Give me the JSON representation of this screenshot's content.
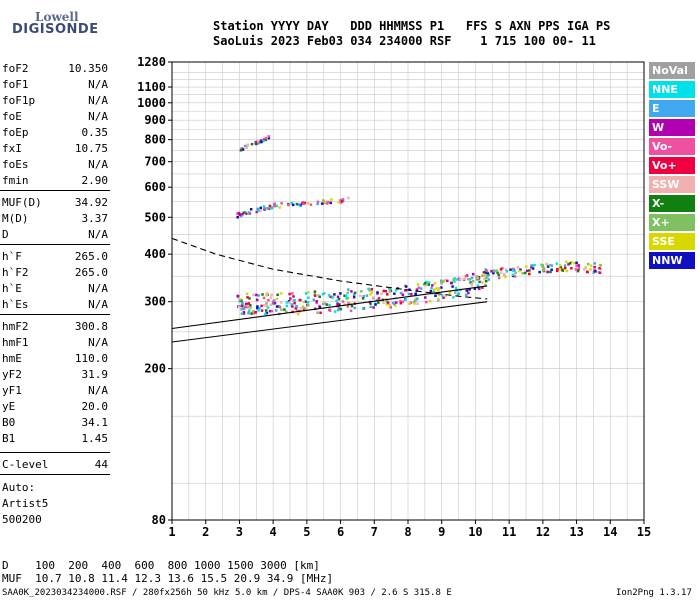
{
  "logo": {
    "top": "Lowell",
    "main": "DIGISONDE"
  },
  "header": {
    "line1": "Station YYYY DAY   DDD HHMMSS P1   FFS S AXN PPS IGA PS",
    "line2": "SaoLuis 2023 Feb03 034 234000 RSF    1 715 100 00- 11"
  },
  "params": [
    {
      "label": "foF2",
      "value": "10.350"
    },
    {
      "label": "foF1",
      "value": "N/A"
    },
    {
      "label": "foF1p",
      "value": "N/A"
    },
    {
      "label": "foE",
      "value": "N/A"
    },
    {
      "label": "foEp",
      "value": "0.35"
    },
    {
      "label": "fxI",
      "value": "10.75"
    },
    {
      "label": "foEs",
      "value": "N/A"
    },
    {
      "label": "fmin",
      "value": "2.90"
    },
    {
      "label": "MUF(D)",
      "value": "34.92"
    },
    {
      "label": "M(D)",
      "value": "3.37"
    },
    {
      "label": "D",
      "value": "N/A"
    },
    {
      "label": "h`F",
      "value": "265.0"
    },
    {
      "label": "h`F2",
      "value": "265.0"
    },
    {
      "label": "h`E",
      "value": "N/A"
    },
    {
      "label": "h`Es",
      "value": "N/A"
    },
    {
      "label": "hmF2",
      "value": "300.8"
    },
    {
      "label": "hmF1",
      "value": "N/A"
    },
    {
      "label": "hmE",
      "value": "110.0"
    },
    {
      "label": "yF2",
      "value": "31.9"
    },
    {
      "label": "yF1",
      "value": "N/A"
    },
    {
      "label": "yE",
      "value": "20.0"
    },
    {
      "label": "B0",
      "value": "34.1"
    },
    {
      "label": "B1",
      "value": "1.45"
    },
    {
      "label": "C-level",
      "value": "44"
    }
  ],
  "auto": {
    "line1": "Auto:",
    "line2": "Artist5",
    "line3": "500200"
  },
  "legend": [
    {
      "label": "NoVal",
      "color": "#a0a0a0"
    },
    {
      "label": "NNE",
      "color": "#00e0e8"
    },
    {
      "label": "E",
      "color": "#40a8f0"
    },
    {
      "label": "W",
      "color": "#b000b0"
    },
    {
      "label": "Vo-",
      "color": "#f050a0"
    },
    {
      "label": "Vo+",
      "color": "#f00040"
    },
    {
      "label": "SSW",
      "color": "#f0b0b0"
    },
    {
      "label": "X-",
      "color": "#108010"
    },
    {
      "label": "X+",
      "color": "#80c060"
    },
    {
      "label": "SSE",
      "color": "#d8d800"
    },
    {
      "label": "NNW",
      "color": "#1010c0"
    }
  ],
  "footer": {
    "d_line": "D    100  200  400  600  800 1000 1500 3000 [km]",
    "muf_line": "MUF  10.7 10.8 11.4 12.3 13.6 15.5 20.9 34.9 [MHz]",
    "info": "SAA0K_2023034234000.RSF / 280fx256h 50 kHz 5.0 km / DPS-4 SAA0K 903 / 2.6 S 315.8 E",
    "version": "Ion2Png 1.3.17"
  },
  "chart_data": {
    "type": "scatter",
    "title": "",
    "xlabel": "",
    "ylabel": "",
    "xlim": [
      1,
      15
    ],
    "ylim": [
      80,
      1280
    ],
    "x_ticks": [
      1,
      2,
      3,
      4,
      5,
      6,
      7,
      8,
      9,
      10,
      11,
      12,
      13,
      14,
      15
    ],
    "y_ticks": [
      80,
      200,
      300,
      400,
      500,
      600,
      700,
      800,
      900,
      1000,
      1100,
      1280
    ],
    "y_scale": "log",
    "grid": true,
    "series": [
      {
        "name": "",
        "kind": "virtual-height trace",
        "x": [
          2.9,
          3.2,
          3.6,
          4.0,
          4.6,
          5.2,
          5.8,
          6.3,
          7.0,
          7.6,
          8.2,
          8.8,
          9.4,
          10.0,
          10.35
        ],
        "y": [
          295,
          300,
          300,
          298,
          300,
          302,
          304,
          306,
          308,
          312,
          318,
          324,
          330,
          340,
          350
        ]
      },
      {
        "name": "",
        "kind": "secondary echo",
        "x": [
          2.9,
          3.2,
          3.6,
          4.0,
          4.6,
          5.2,
          5.8,
          6.2
        ],
        "y": [
          510,
          520,
          530,
          540,
          545,
          550,
          555,
          560
        ]
      },
      {
        "name": "",
        "kind": "tertiary echo",
        "x": [
          3.0,
          3.3,
          3.6,
          3.9
        ],
        "y": [
          760,
          780,
          800,
          820
        ]
      },
      {
        "name": "",
        "kind": "high frequency echo",
        "x": [
          10.2,
          10.8,
          11.4,
          12.0,
          12.6,
          13.2,
          13.8
        ],
        "y": [
          355,
          360,
          365,
          370,
          375,
          372,
          370
        ]
      }
    ],
    "profile_lines": [
      {
        "kind": "solid",
        "x": [
          1,
          10.35
        ],
        "y": [
          235,
          300
        ]
      },
      {
        "kind": "solid",
        "x": [
          1,
          10.35
        ],
        "y": [
          255,
          330
        ]
      },
      {
        "kind": "dashed",
        "x": [
          1,
          2.3,
          4.0,
          6.0,
          8.0,
          9.5,
          10.35
        ],
        "y": [
          440,
          400,
          365,
          340,
          322,
          310,
          305
        ]
      }
    ]
  }
}
